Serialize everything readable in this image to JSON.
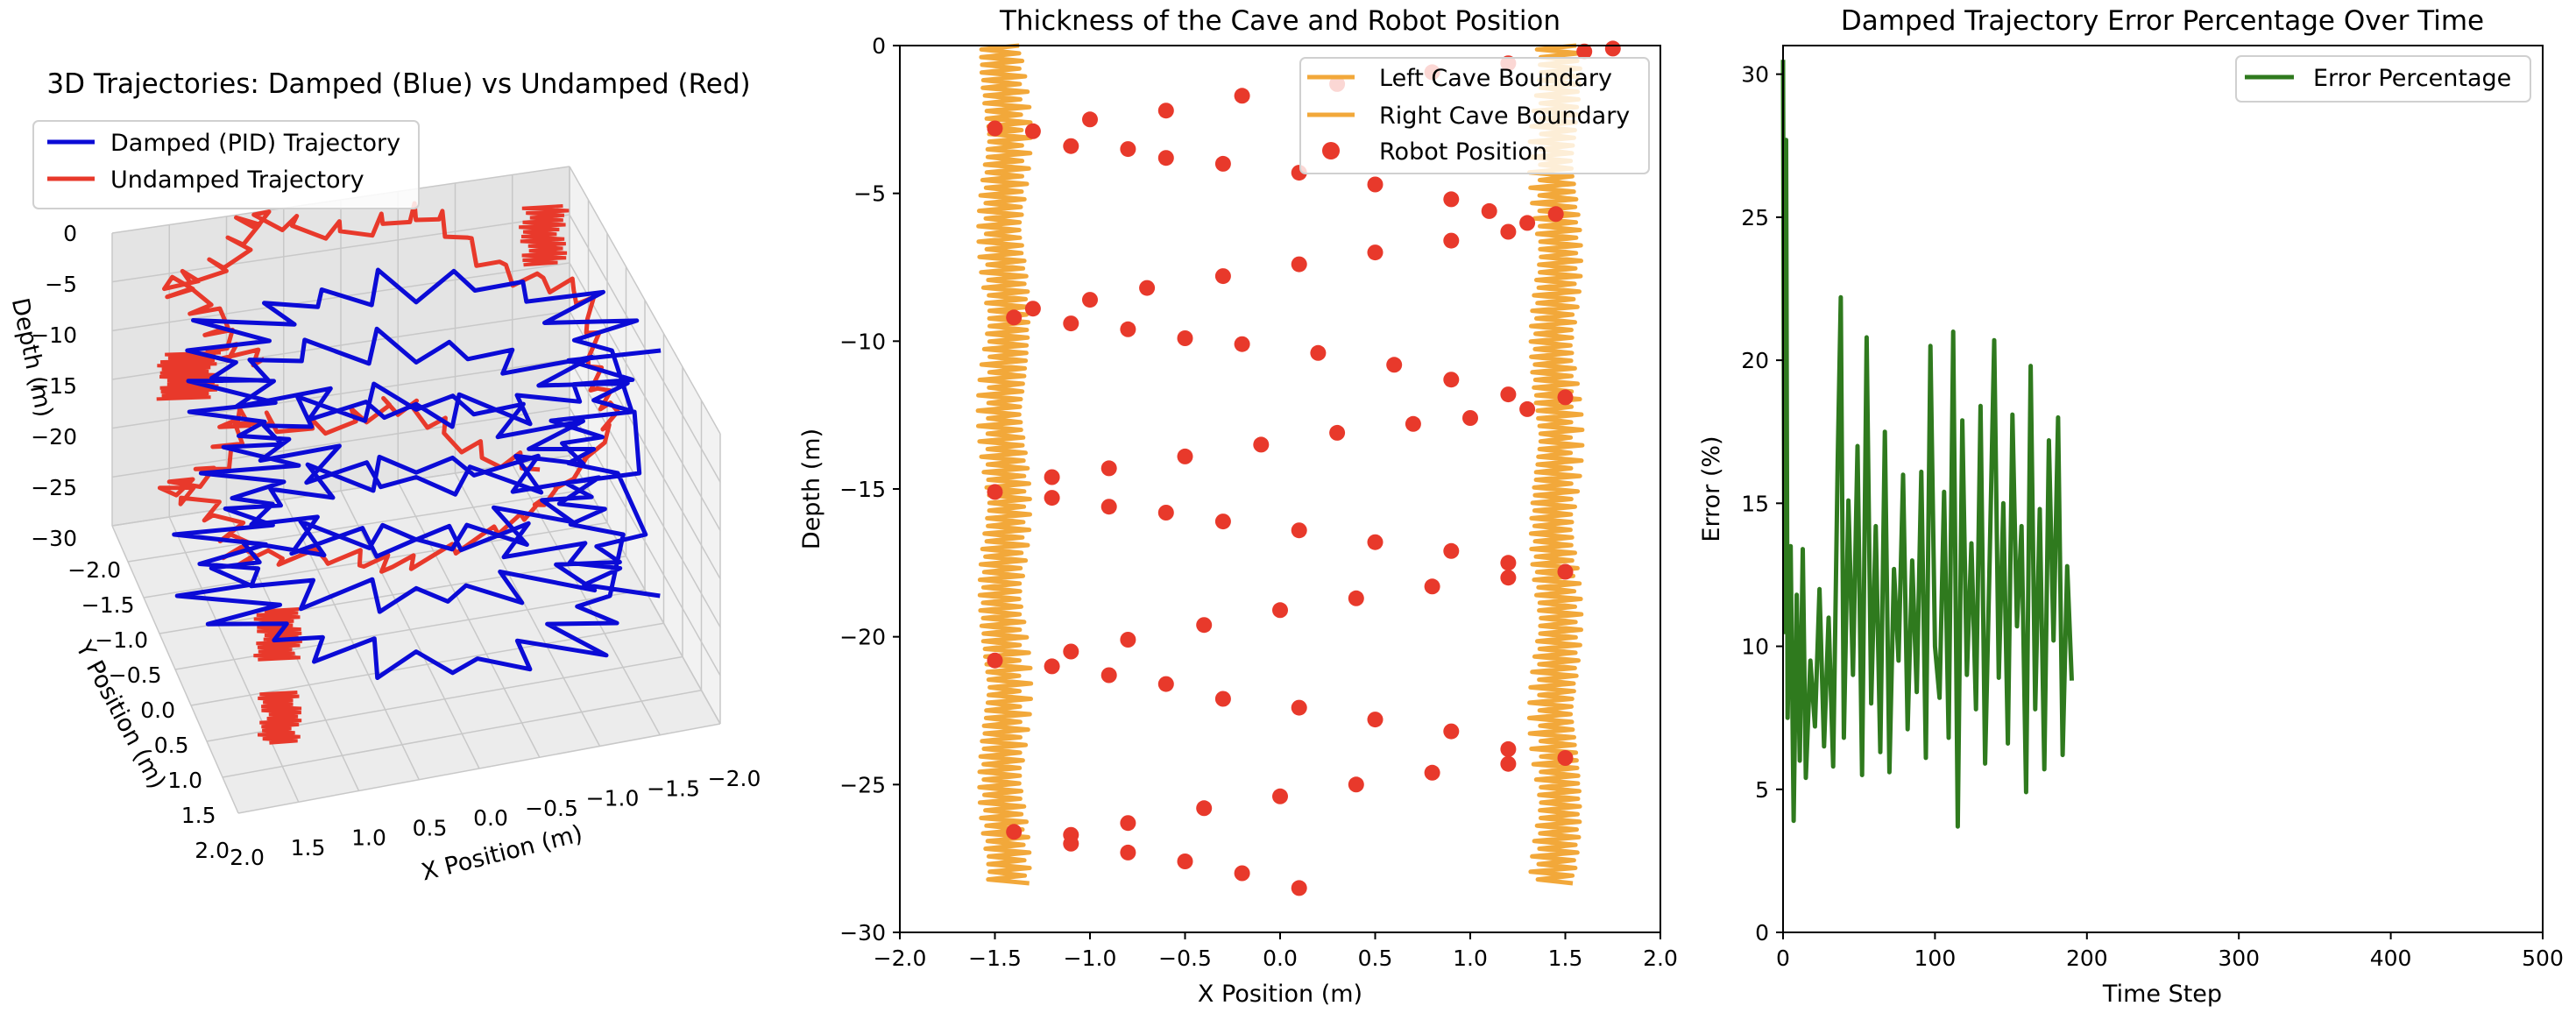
{
  "colors": {
    "damped": "#0b0bd6",
    "undamped": "#e8392b",
    "cave": "#f2a83a",
    "robot": "#e8392b",
    "error": "#2f7a1e"
  },
  "chart_data": [
    {
      "type": "line",
      "subtype": "3d",
      "title": "3D Trajectories: Damped (Blue) vs Undamped (Red)",
      "xlabel": "X Position (m)",
      "ylabel": "Y Position (m)",
      "zlabel": "Depth (m)",
      "xlim": [
        -2.0,
        2.0
      ],
      "ylim": [
        -2.0,
        2.0
      ],
      "zlim": [
        -30,
        0
      ],
      "xticks": [
        "2.0",
        "1.5",
        "1.0",
        "0.5",
        "0.0",
        "−0.5",
        "−1.0",
        "−1.5",
        "−2.0"
      ],
      "yticks": [
        "−2.0",
        "−1.5",
        "−1.0",
        "−0.5",
        "0.0",
        "0.5",
        "1.0",
        "1.5",
        "2.0"
      ],
      "zticks": [
        "0",
        "−5",
        "−10",
        "−15",
        "−20",
        "−25",
        "−30"
      ],
      "legend_position": "top-left",
      "series": [
        {
          "name": "Damped (PID) Trajectory",
          "color": "#0b0bd6"
        },
        {
          "name": "Undamped Trajectory",
          "color": "#e8392b"
        }
      ]
    },
    {
      "type": "scatter",
      "title": "Thickness of the Cave and Robot Position",
      "xlabel": "X Position (m)",
      "ylabel": "Depth (m)",
      "xlim": [
        -2.0,
        2.0
      ],
      "ylim": [
        -30,
        0
      ],
      "xticks": [
        "−2.0",
        "−1.5",
        "−1.0",
        "−0.5",
        "0.0",
        "0.5",
        "1.0",
        "1.5",
        "2.0"
      ],
      "yticks": [
        "0",
        "−5",
        "−10",
        "−15",
        "−20",
        "−25",
        "−30"
      ],
      "legend_position": "top-right",
      "series": [
        {
          "name": "Left Cave Boundary",
          "type": "line",
          "color": "#f2a83a",
          "center_x": -1.45,
          "amplitude": 0.14
        },
        {
          "name": "Right Cave Boundary",
          "type": "line",
          "color": "#f2a83a",
          "center_x": 1.45,
          "amplitude": 0.14
        },
        {
          "name": "Robot Position",
          "type": "scatter",
          "color": "#e8392b",
          "points": [
            [
              1.75,
              -0.1
            ],
            [
              1.6,
              -0.2
            ],
            [
              1.2,
              -0.6
            ],
            [
              0.8,
              -0.9
            ],
            [
              0.3,
              -1.3
            ],
            [
              -0.2,
              -1.7
            ],
            [
              -0.6,
              -2.2
            ],
            [
              -1.0,
              -2.5
            ],
            [
              -1.3,
              -2.9
            ],
            [
              -1.5,
              -2.8
            ],
            [
              -1.1,
              -3.4
            ],
            [
              -0.8,
              -3.5
            ],
            [
              -0.6,
              -3.8
            ],
            [
              -0.3,
              -4.0
            ],
            [
              0.1,
              -4.3
            ],
            [
              0.5,
              -4.7
            ],
            [
              0.9,
              -5.2
            ],
            [
              1.1,
              -5.6
            ],
            [
              1.3,
              -6.0
            ],
            [
              1.45,
              -5.7
            ],
            [
              1.2,
              -6.3
            ],
            [
              0.9,
              -6.6
            ],
            [
              0.5,
              -7.0
            ],
            [
              0.1,
              -7.4
            ],
            [
              -0.3,
              -7.8
            ],
            [
              -0.7,
              -8.2
            ],
            [
              -1.0,
              -8.6
            ],
            [
              -1.3,
              -8.9
            ],
            [
              -1.4,
              -9.2
            ],
            [
              -1.1,
              -9.4
            ],
            [
              -0.8,
              -9.6
            ],
            [
              -0.5,
              -9.9
            ],
            [
              -0.2,
              -10.1
            ],
            [
              0.2,
              -10.4
            ],
            [
              0.6,
              -10.8
            ],
            [
              0.9,
              -11.3
            ],
            [
              1.2,
              -11.8
            ],
            [
              1.5,
              -11.9
            ],
            [
              1.3,
              -12.3
            ],
            [
              1.0,
              -12.6
            ],
            [
              0.7,
              -12.8
            ],
            [
              0.3,
              -13.1
            ],
            [
              -0.1,
              -13.5
            ],
            [
              -0.5,
              -13.9
            ],
            [
              -0.9,
              -14.3
            ],
            [
              -1.2,
              -14.6
            ],
            [
              -1.5,
              -15.1
            ],
            [
              -1.2,
              -15.3
            ],
            [
              -0.9,
              -15.6
            ],
            [
              -0.6,
              -15.8
            ],
            [
              -0.3,
              -16.1
            ],
            [
              0.1,
              -16.4
            ],
            [
              0.5,
              -16.8
            ],
            [
              0.9,
              -17.1
            ],
            [
              1.2,
              -17.5
            ],
            [
              1.5,
              -17.8
            ],
            [
              1.2,
              -18.0
            ],
            [
              0.8,
              -18.3
            ],
            [
              0.4,
              -18.7
            ],
            [
              0.0,
              -19.1
            ],
            [
              -0.4,
              -19.6
            ],
            [
              -0.8,
              -20.1
            ],
            [
              -1.1,
              -20.5
            ],
            [
              -1.5,
              -20.8
            ],
            [
              -1.2,
              -21.0
            ],
            [
              -0.9,
              -21.3
            ],
            [
              -0.6,
              -21.6
            ],
            [
              -0.3,
              -22.1
            ],
            [
              0.1,
              -22.4
            ],
            [
              0.5,
              -22.8
            ],
            [
              0.9,
              -23.2
            ],
            [
              1.2,
              -23.8
            ],
            [
              1.5,
              -24.1
            ],
            [
              1.2,
              -24.3
            ],
            [
              0.8,
              -24.6
            ],
            [
              0.4,
              -25.0
            ],
            [
              0.0,
              -25.4
            ],
            [
              -0.4,
              -25.8
            ],
            [
              -0.8,
              -26.3
            ],
            [
              -1.1,
              -26.7
            ],
            [
              -1.4,
              -26.6
            ],
            [
              -1.1,
              -27.0
            ],
            [
              -0.8,
              -27.3
            ],
            [
              -0.5,
              -27.6
            ],
            [
              -0.2,
              -28.0
            ],
            [
              0.1,
              -28.5
            ]
          ]
        }
      ]
    },
    {
      "type": "line",
      "title": "Damped Trajectory Error Percentage Over Time",
      "xlabel": "Time Step",
      "ylabel": "Error (%)",
      "xlim": [
        0,
        500
      ],
      "ylim": [
        0,
        31
      ],
      "xticks": [
        "0",
        "100",
        "200",
        "300",
        "400",
        "500"
      ],
      "yticks": [
        "0",
        "5",
        "10",
        "15",
        "20",
        "25",
        "30"
      ],
      "legend_position": "top-right",
      "series": [
        {
          "name": "Error Percentage",
          "color": "#2f7a1e",
          "x": [
            0,
            1,
            2,
            3,
            5,
            7,
            9,
            11,
            13,
            15,
            18,
            21,
            24,
            27,
            30,
            33,
            36,
            38,
            40,
            43,
            46,
            49,
            52,
            55,
            58,
            61,
            64,
            67,
            70,
            73,
            76,
            79,
            82,
            85,
            88,
            91,
            94,
            97,
            100,
            103,
            106,
            109,
            112,
            115,
            118,
            121,
            124,
            127,
            130,
            133,
            136,
            139,
            142,
            145,
            148,
            151,
            154,
            157,
            160,
            163,
            166,
            169,
            172,
            175,
            178,
            181,
            184,
            187,
            190
          ],
          "values": [
            30.5,
            10.5,
            27.7,
            7.5,
            13.5,
            3.9,
            11.8,
            6.0,
            13.4,
            5.4,
            9.5,
            7.2,
            12.0,
            6.5,
            11.0,
            5.8,
            16.5,
            22.2,
            6.8,
            15.1,
            9.0,
            17.0,
            5.5,
            20.8,
            8.0,
            14.2,
            6.3,
            17.5,
            5.6,
            12.7,
            9.5,
            16.0,
            7.1,
            13.0,
            8.4,
            16.1,
            6.1,
            20.5,
            10.0,
            8.2,
            15.4,
            6.8,
            21.0,
            3.7,
            17.9,
            9.0,
            13.6,
            7.8,
            18.4,
            5.9,
            13.0,
            20.7,
            8.9,
            15.0,
            6.6,
            18.1,
            10.7,
            14.2,
            4.9,
            19.8,
            7.8,
            14.8,
            5.7,
            17.2,
            10.2,
            18.0,
            6.2,
            12.8,
            8.8
          ]
        }
      ]
    }
  ]
}
